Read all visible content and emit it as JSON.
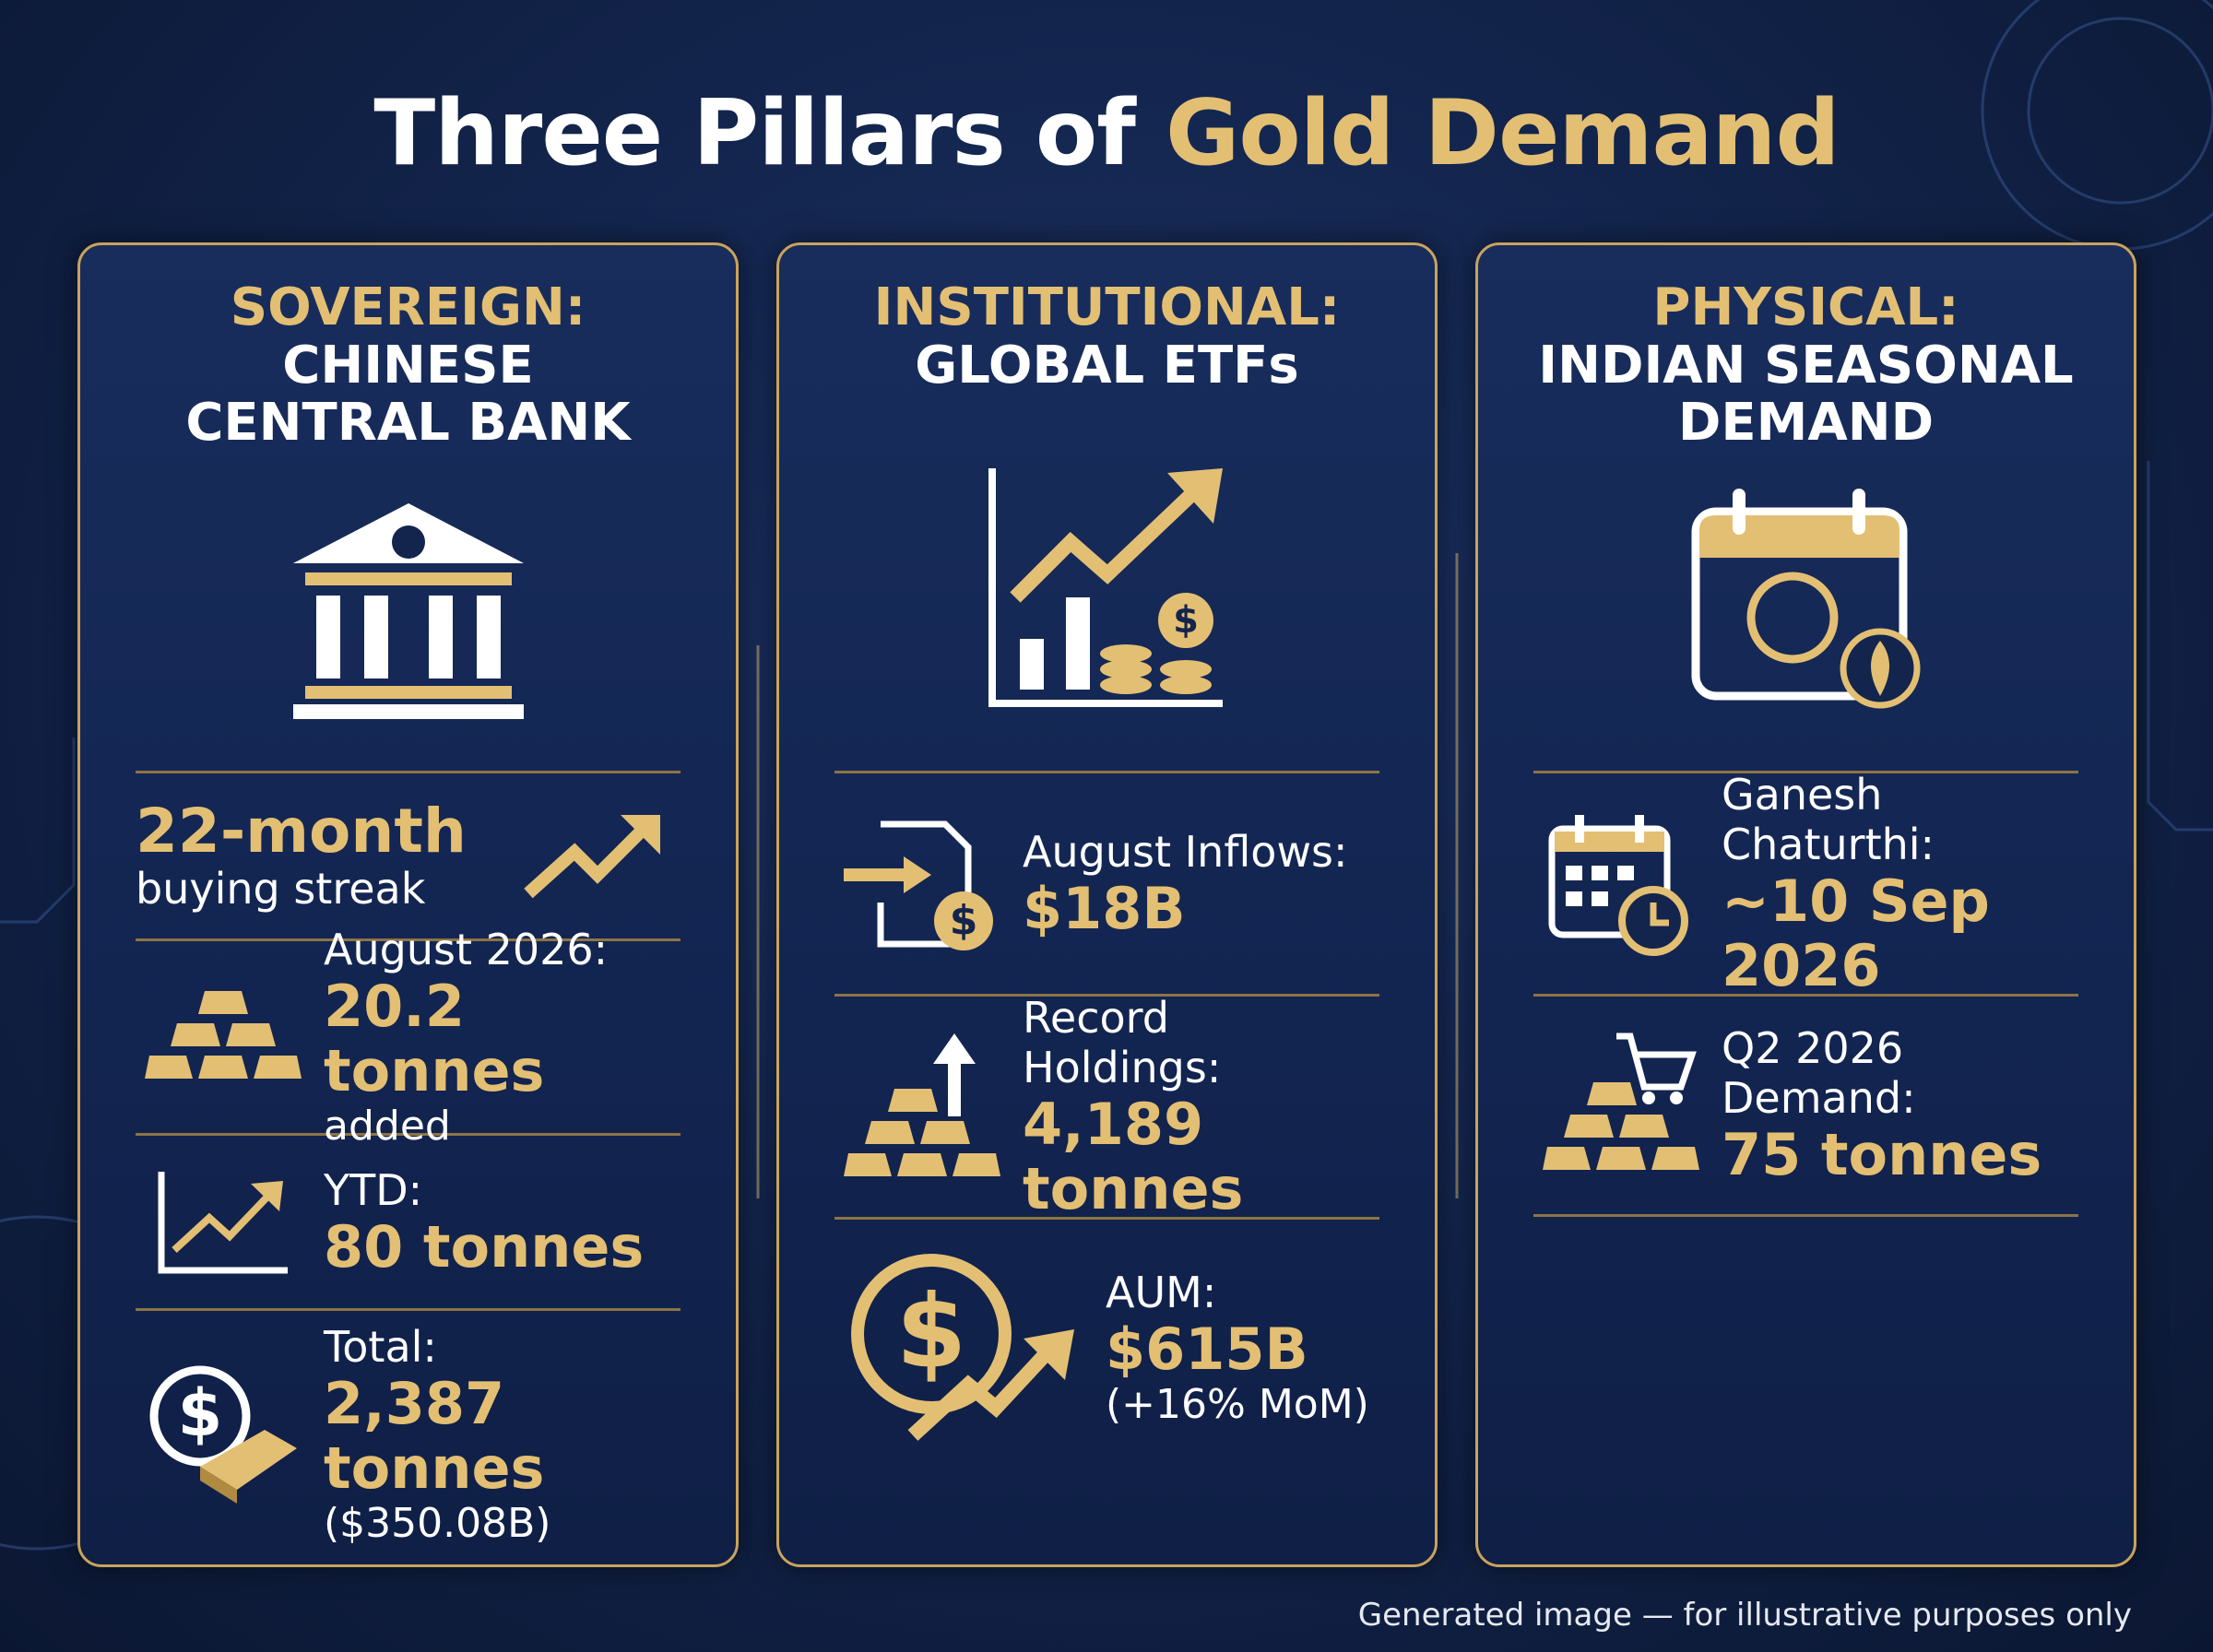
{
  "title": {
    "prefix": "Three Pillars of ",
    "highlight": "Gold Demand"
  },
  "pillars": [
    {
      "category": "SOVEREIGN:",
      "subject": [
        "CHINESE",
        "CENTRAL BANK"
      ],
      "items": [
        {
          "value": "22-month",
          "note": "buying streak"
        },
        {
          "label": "August 2026:",
          "value": "20.2 tonnes",
          "note": "added"
        },
        {
          "label": "YTD:",
          "value": "80 tonnes"
        },
        {
          "label": "Total:",
          "value": "2,387 tonnes",
          "note": "($350.08B)"
        }
      ]
    },
    {
      "category": "INSTITUTIONAL:",
      "subject": [
        "GLOBAL ETFs"
      ],
      "items": [
        {
          "label": "August Inflows:",
          "value": "$18B"
        },
        {
          "label": "Record Holdings:",
          "value": "4,189 tonnes"
        },
        {
          "label": "AUM:",
          "value": "$615B",
          "note": "(+16% MoM)"
        }
      ]
    },
    {
      "category": "PHYSICAL:",
      "subject": [
        "INDIAN SEASONAL",
        "DEMAND"
      ],
      "items": [
        {
          "label": "Ganesh Chaturthi:",
          "value": "~10 Sep 2026"
        },
        {
          "label": "Q2 2026 Demand:",
          "value": "75 tonnes"
        }
      ]
    }
  ],
  "footer": "Generated image — for illustrative purposes only"
}
